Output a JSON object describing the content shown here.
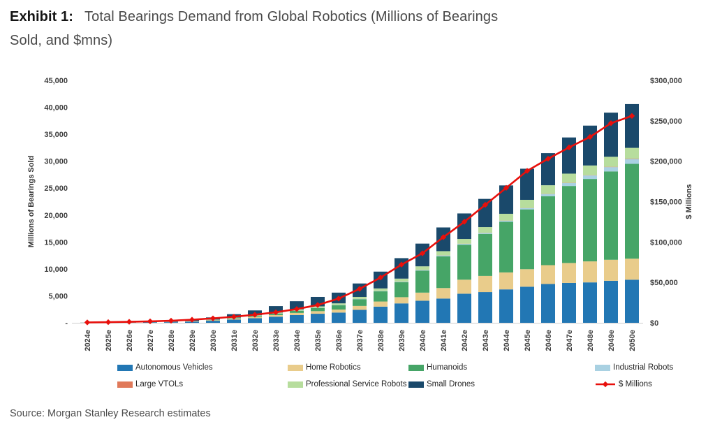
{
  "title": {
    "exhibit": "Exhibit 1:",
    "line1": "Total Bearings Demand from Global Robotics (Millions of Bearings",
    "line2": "Sold, and $mns)"
  },
  "source": "Source: Morgan Stanley Research estimates",
  "chart_data": {
    "type": "bar",
    "variant": "stacked-columns-with-line-overlay",
    "grid": "off",
    "categories": [
      "2024e",
      "2025e",
      "2026e",
      "2027e",
      "2028e",
      "2029e",
      "2030e",
      "2031e",
      "2032e",
      "2033e",
      "2034e",
      "2035e",
      "2036e",
      "2037e",
      "2038e",
      "2039e",
      "2040e",
      "2041e",
      "2042e",
      "2043e",
      "2044e",
      "2045e",
      "2046e",
      "2047e",
      "2048e",
      "2049e",
      "2050e"
    ],
    "series": [
      {
        "name": "Autonomous Vehicles",
        "color": "#2277b4",
        "values": [
          12,
          24,
          45,
          70,
          115,
          210,
          380,
          600,
          850,
          1130,
          1430,
          1680,
          1900,
          2400,
          3000,
          3600,
          4100,
          4500,
          5400,
          5700,
          6200,
          6700,
          7200,
          7400,
          7500,
          7800,
          8000
        ]
      },
      {
        "name": "Home Robotics",
        "color": "#e9cc8b",
        "values": [
          3,
          6,
          10,
          18,
          30,
          55,
          100,
          160,
          230,
          310,
          400,
          480,
          560,
          730,
          950,
          1150,
          1500,
          1950,
          2600,
          3000,
          3150,
          3250,
          3500,
          3700,
          3900,
          3900,
          3900
        ]
      },
      {
        "name": "Humanoids",
        "color": "#46a567",
        "values": [
          0,
          0,
          1,
          2,
          5,
          15,
          40,
          90,
          160,
          270,
          420,
          600,
          820,
          1250,
          1900,
          2800,
          4100,
          5900,
          6500,
          7800,
          9400,
          11100,
          12800,
          14300,
          15300,
          16400,
          17600
        ]
      },
      {
        "name": "Industrial Robots",
        "color": "#a9d1e2",
        "values": [
          5,
          6,
          8,
          10,
          12,
          15,
          20,
          25,
          30,
          35,
          40,
          45,
          50,
          60,
          75,
          90,
          110,
          150,
          170,
          190,
          210,
          250,
          400,
          550,
          650,
          800,
          900
        ]
      },
      {
        "name": "Large VTOLs",
        "color": "#e0795a",
        "values": [
          0,
          0,
          0,
          0,
          1,
          1,
          2,
          3,
          4,
          5,
          6,
          7,
          8,
          10,
          12,
          14,
          16,
          18,
          20,
          22,
          24,
          26,
          30,
          40,
          50,
          60,
          70
        ]
      },
      {
        "name": "Professional Service Robots",
        "color": "#b7dd9d",
        "values": [
          2,
          4,
          6,
          10,
          17,
          34,
          58,
          92,
          126,
          160,
          204,
          238,
          272,
          350,
          443,
          546,
          654,
          780,
          870,
          1050,
          1250,
          1500,
          1600,
          1700,
          1800,
          1850,
          2000
        ]
      },
      {
        "name": "Small Drones",
        "color": "#1a496b",
        "values": [
          8,
          20,
          40,
          70,
          120,
          220,
          400,
          630,
          900,
          1190,
          1500,
          1750,
          1990,
          2500,
          3120,
          3800,
          4220,
          4402,
          4740,
          5238,
          5266,
          5774,
          5970,
          6710,
          7400,
          8190,
          8130
        ]
      }
    ],
    "line_series": {
      "name": "$ Millions",
      "color": "#e8100c",
      "marker": "diamond",
      "axis": "right",
      "values": [
        500,
        800,
        1200,
        1800,
        2600,
        3800,
        5500,
        7500,
        10000,
        13000,
        17000,
        22000,
        30000,
        42000,
        56000,
        72000,
        86000,
        106000,
        125000,
        146000,
        167000,
        188000,
        203000,
        217000,
        230000,
        247000,
        256000
      ]
    },
    "left_axis": {
      "label": "Millions of Bearings Sold",
      "range": [
        0,
        45000
      ],
      "ticks": [
        {
          "value": 0,
          "label": "-"
        },
        {
          "value": 5000,
          "label": "5,000"
        },
        {
          "value": 10000,
          "label": "10,000"
        },
        {
          "value": 15000,
          "label": "15,000"
        },
        {
          "value": 20000,
          "label": "20,000"
        },
        {
          "value": 25000,
          "label": "25,000"
        },
        {
          "value": 30000,
          "label": "30,000"
        },
        {
          "value": 35000,
          "label": "35,000"
        },
        {
          "value": 40000,
          "label": "40,000"
        },
        {
          "value": 45000,
          "label": "45,000"
        }
      ]
    },
    "right_axis": {
      "label": "$ Millions",
      "range": [
        0,
        300000
      ],
      "ticks": [
        {
          "value": 0,
          "label": "$0"
        },
        {
          "value": 50000,
          "label": "$50,000"
        },
        {
          "value": 100000,
          "label": "$100,000"
        },
        {
          "value": 150000,
          "label": "$150,000"
        },
        {
          "value": 200000,
          "label": "$200,000"
        },
        {
          "value": 250000,
          "label": "$250,000"
        },
        {
          "value": 300000,
          "label": "$300,000"
        }
      ]
    },
    "legend": {
      "position": "bottom",
      "rows": [
        [
          {
            "name": "Autonomous Vehicles",
            "color": "#2277b4",
            "type": "box"
          },
          {
            "name": "Home Robotics",
            "color": "#e9cc8b",
            "type": "box"
          },
          {
            "name": "Humanoids",
            "color": "#46a567",
            "type": "box"
          },
          {
            "name": "Industrial Robots",
            "color": "#a9d1e2",
            "type": "box"
          }
        ],
        [
          {
            "name": "Large VTOLs",
            "color": "#e0795a",
            "type": "box"
          },
          {
            "name": "Professional Service Robots",
            "color": "#b7dd9d",
            "type": "box"
          },
          {
            "name": "Small Drones",
            "color": "#1a496b",
            "type": "box"
          },
          {
            "name": "$ Millions",
            "color": "#e8100c",
            "type": "line-diamond"
          }
        ]
      ]
    }
  }
}
